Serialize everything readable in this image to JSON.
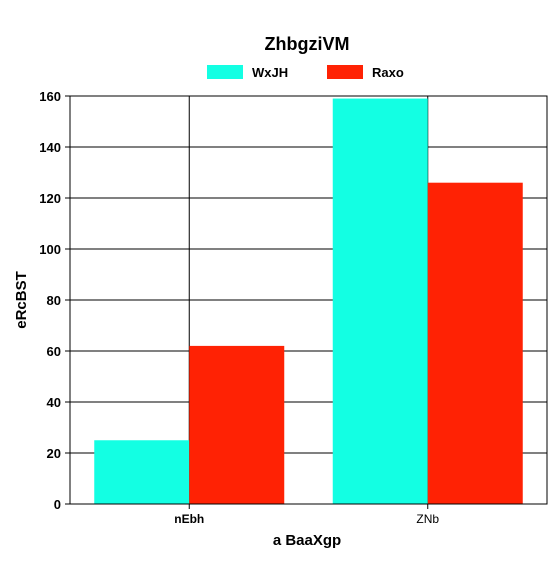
{
  "chart_data": {
    "type": "bar",
    "title": "ZhbgziVM",
    "xlabel": "a BaaXgp",
    "ylabel": "eRcBST",
    "categories": [
      "nEbh",
      "ZNb"
    ],
    "series": [
      {
        "name": "WxJH",
        "values": [
          25,
          159
        ],
        "color": "#13ffe3"
      },
      {
        "name": "Raxo",
        "values": [
          62,
          126
        ],
        "color": "#ff2204"
      }
    ],
    "ylim": [
      0,
      160
    ],
    "yticks": [
      0,
      20,
      40,
      60,
      80,
      100,
      120,
      140,
      160
    ],
    "grid": true,
    "legend": "top-center"
  }
}
